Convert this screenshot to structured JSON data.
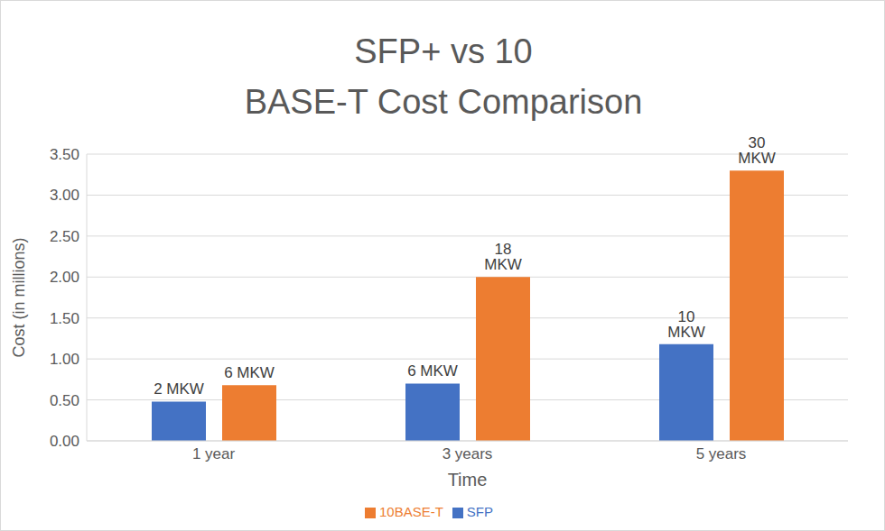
{
  "chart_data": {
    "type": "bar",
    "title": "SFP+ vs 10\nBASE-T Cost Comparison",
    "x_label": "Time",
    "y_label": "Cost (in millions)",
    "categories": [
      "1 year",
      "3 years",
      "5 years"
    ],
    "series": [
      {
        "name": "SFP",
        "color": "#4472c4",
        "values": [
          0.48,
          0.7,
          1.18
        ],
        "annotations": [
          "2 MKW",
          "6 MKW",
          "10 MKW"
        ]
      },
      {
        "name": "10BASE-T",
        "color": "#ed7d31",
        "values": [
          0.68,
          2.0,
          3.3
        ],
        "annotations": [
          "6 MKW",
          "18 MKW",
          "30 MKW"
        ]
      }
    ],
    "ylim": [
      0,
      3.5
    ],
    "yticks": [
      {
        "value": 0,
        "label": "0.00"
      },
      {
        "value": 0.5,
        "label": "0.50"
      },
      {
        "value": 1,
        "label": "1.00"
      },
      {
        "value": 1.5,
        "label": "1.50"
      },
      {
        "value": 2,
        "label": "2.00"
      },
      {
        "value": 2.5,
        "label": "2.50"
      },
      {
        "value": 3,
        "label": "3.00"
      },
      {
        "value": 3.5,
        "label": "3.50"
      }
    ],
    "grid": true,
    "legend": "bottom"
  }
}
